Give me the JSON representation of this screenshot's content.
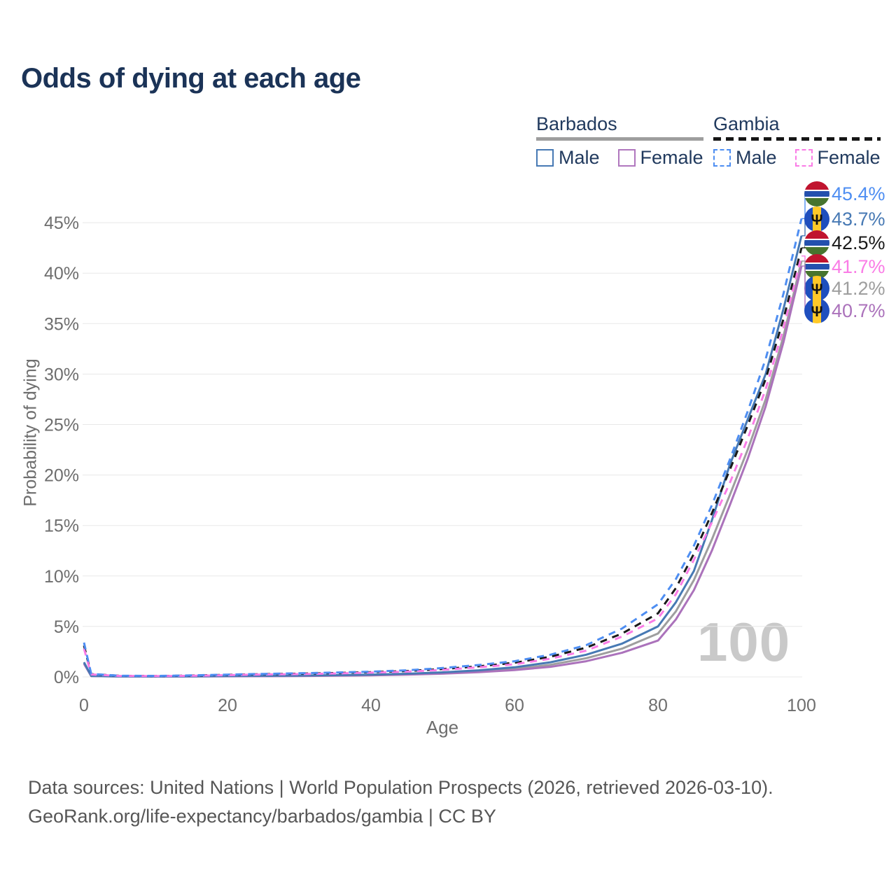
{
  "title": "Odds of dying at each age",
  "watermark": "100",
  "legend": {
    "groups": [
      {
        "label": "Barbados",
        "underline": {
          "style": "solid",
          "color": "#9e9e9e"
        },
        "items": [
          {
            "label": "Male",
            "color": "#4779b4",
            "dashed": false
          },
          {
            "label": "Female",
            "color": "#b077be",
            "dashed": false
          }
        ]
      },
      {
        "label": "Gambia",
        "underline": {
          "style": "dashed",
          "color": "#161616"
        },
        "items": [
          {
            "label": "Male",
            "color": "#4e8ef2",
            "dashed": true
          },
          {
            "label": "Female",
            "color": "#fa7ce6",
            "dashed": true
          }
        ]
      }
    ]
  },
  "footer": {
    "line1": "Data sources: United Nations | World Population Prospects (2026, retrieved 2026-03-10).",
    "line2": "GeoRank.org/life-expectancy/barbados/gambia | CC BY"
  },
  "colors": {
    "title_text": "#1b3357",
    "axis_text": "#6e6e6e",
    "gridline": "#e8e8e8",
    "flag_gambia": {
      "red": "#c0142f",
      "blue": "#2450ae",
      "green": "#47742e",
      "white": "#ffffff"
    },
    "flag_barbados": {
      "blue": "#1f4fbe",
      "yellow": "#ffc928",
      "trident": "#111111"
    }
  },
  "chart_data": {
    "type": "line",
    "title": "Odds of dying at each age",
    "xlabel": "Age",
    "ylabel": "Probability of dying",
    "xlim": [
      0,
      100
    ],
    "ylim": [
      0,
      47
    ],
    "x_ticks": [
      0,
      20,
      40,
      60,
      80,
      100
    ],
    "y_ticks": [
      0,
      5,
      10,
      15,
      20,
      25,
      30,
      35,
      40,
      45
    ],
    "y_tick_suffix": "%",
    "grid": "horizontal",
    "legend_position": "top-right",
    "age_cursor": "100",
    "ages": [
      0,
      1,
      5,
      10,
      15,
      20,
      25,
      30,
      35,
      40,
      45,
      50,
      55,
      60,
      65,
      70,
      75,
      80,
      82.5,
      85,
      87.5,
      90,
      92.5,
      95,
      97.5,
      100
    ],
    "series": [
      {
        "key": "barbados",
        "name": "Barbados",
        "flag": "barbados",
        "color": "#9e9e9e",
        "dashed": false,
        "end_label": "41.2%",
        "values": [
          1.4,
          0.09,
          0.04,
          0.035,
          0.05,
          0.07,
          0.09,
          0.11,
          0.14,
          0.19,
          0.26,
          0.38,
          0.55,
          0.8,
          1.2,
          1.85,
          2.8,
          4.3,
          6.5,
          9.6,
          13.6,
          18.0,
          22.5,
          27.5,
          33.8,
          41.2
        ]
      },
      {
        "key": "barbados-female",
        "name": "Barbados Female",
        "flag": "barbados",
        "color": "#ab72bb",
        "dashed": false,
        "end_label": "40.7%",
        "values": [
          1.3,
          0.08,
          0.04,
          0.03,
          0.04,
          0.06,
          0.07,
          0.09,
          0.12,
          0.16,
          0.22,
          0.32,
          0.47,
          0.68,
          1.0,
          1.55,
          2.4,
          3.6,
          5.7,
          8.6,
          12.5,
          17.0,
          21.6,
          26.8,
          33.2,
          40.7
        ]
      },
      {
        "key": "barbados-male",
        "name": "Barbados Male",
        "flag": "barbados",
        "color": "#4779b4",
        "dashed": false,
        "end_label": "43.7%",
        "values": [
          1.45,
          0.1,
          0.05,
          0.04,
          0.06,
          0.09,
          0.11,
          0.13,
          0.17,
          0.22,
          0.31,
          0.45,
          0.65,
          0.95,
          1.45,
          2.2,
          3.3,
          5.0,
          7.4,
          10.5,
          15.5,
          21.0,
          25.5,
          30.0,
          36.5,
          43.7
        ]
      },
      {
        "key": "gambia",
        "name": "Gambia",
        "flag": "gambia",
        "color": "#1a1a1a",
        "dashed": true,
        "end_label": "42.5%",
        "values": [
          3.1,
          0.27,
          0.11,
          0.09,
          0.13,
          0.2,
          0.27,
          0.32,
          0.38,
          0.47,
          0.58,
          0.78,
          1.05,
          1.4,
          2.0,
          2.9,
          4.3,
          6.3,
          8.8,
          12.2,
          16.2,
          20.5,
          24.9,
          29.5,
          35.5,
          42.5
        ]
      },
      {
        "key": "gambia-female",
        "name": "Gambia Female",
        "flag": "gambia",
        "color": "#fa7ce6",
        "dashed": true,
        "end_label": "41.7%",
        "values": [
          2.8,
          0.24,
          0.1,
          0.08,
          0.11,
          0.17,
          0.24,
          0.28,
          0.34,
          0.42,
          0.52,
          0.7,
          0.95,
          1.25,
          1.8,
          2.6,
          4.0,
          5.8,
          8.2,
          11.6,
          15.3,
          19.2,
          23.6,
          28.5,
          34.6,
          41.7
        ]
      },
      {
        "key": "gambia-male",
        "name": "Gambia Male",
        "flag": "gambia",
        "color": "#4e8ef2",
        "dashed": true,
        "end_label": "45.4%",
        "values": [
          3.4,
          0.3,
          0.12,
          0.1,
          0.15,
          0.23,
          0.3,
          0.36,
          0.43,
          0.52,
          0.65,
          0.88,
          1.18,
          1.55,
          2.2,
          3.15,
          4.8,
          7.2,
          9.7,
          13.0,
          17.0,
          21.5,
          26.3,
          31.5,
          38.0,
          45.4
        ]
      }
    ]
  }
}
